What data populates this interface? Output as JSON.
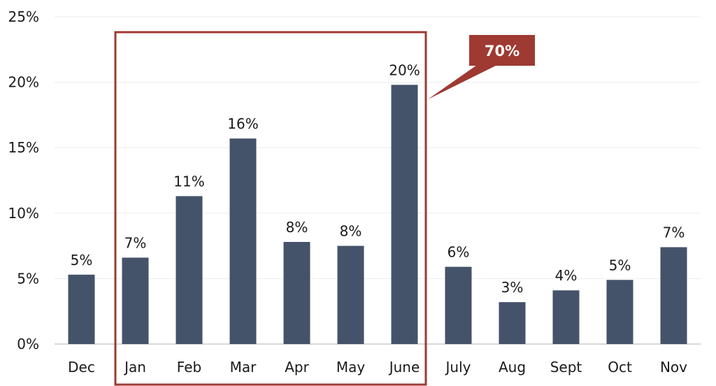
{
  "chart_data": {
    "type": "bar",
    "title": "",
    "xlabel": "",
    "ylabel": "",
    "categories": [
      "Dec",
      "Jan",
      "Feb",
      "Mar",
      "Apr",
      "May",
      "June",
      "July",
      "Aug",
      "Sept",
      "Oct",
      "Nov"
    ],
    "values": [
      5.3,
      6.6,
      11.3,
      15.7,
      7.8,
      7.5,
      19.8,
      5.9,
      3.2,
      4.1,
      4.9,
      7.4
    ],
    "data_labels": [
      "5%",
      "7%",
      "11%",
      "16%",
      "8%",
      "8%",
      "20%",
      "6%",
      "3%",
      "4%",
      "5%",
      "7%"
    ],
    "ylim": [
      0,
      25
    ],
    "yticks": [
      0,
      5,
      10,
      15,
      20,
      25
    ],
    "ytick_labels": [
      "0%",
      "5%",
      "10%",
      "15%",
      "20%",
      "25%"
    ],
    "grid": true,
    "legend": null,
    "highlight": {
      "range": [
        "Jan",
        "June"
      ],
      "callout_label": "70%"
    }
  },
  "colors": {
    "bar": "#44536a",
    "highlight": "#9e3a32",
    "grid": "#eeeeee",
    "axis": "#d9d9d9"
  }
}
